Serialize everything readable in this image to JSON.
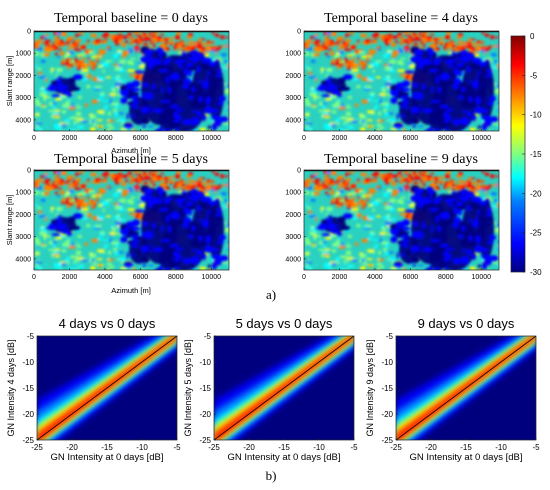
{
  "figure": {
    "part_a_label": "a)",
    "part_b_label": "b)"
  },
  "colors": {
    "colormap": [
      "#00007f",
      "#0000ff",
      "#0080ff",
      "#00ffff",
      "#80ff80",
      "#ffff00",
      "#ff8000",
      "#ff0000",
      "#800000"
    ],
    "regression_line": "#000000"
  },
  "chart_data": [
    {
      "type": "heatmap",
      "title": "Temporal baseline = 0 days",
      "xlabel": "Azimuth [m]",
      "ylabel": "Slant range [m]",
      "xlim": [
        0,
        11000
      ],
      "ylim": [
        0,
        4500
      ],
      "xticks": [
        "0",
        "2000",
        "4000",
        "6000",
        "8000",
        "10000"
      ],
      "yticks": [
        "0",
        "1000",
        "2000",
        "3000",
        "4000"
      ]
    },
    {
      "type": "heatmap",
      "title": "Temporal baseline = 4 days",
      "xlabel": "",
      "ylabel": "",
      "xlim": [
        0,
        11000
      ],
      "ylim": [
        0,
        4500
      ],
      "xticks": [
        "0",
        "2000",
        "4000",
        "6000",
        "8000",
        "10000"
      ],
      "yticks": [
        "0",
        "1000",
        "2000",
        "3000",
        "4000"
      ]
    },
    {
      "type": "heatmap",
      "title": "Temporal baseline = 5 days",
      "xlabel": "Azimuth [m]",
      "ylabel": "Slant range [m]",
      "xlim": [
        0,
        11000
      ],
      "ylim": [
        0,
        4500
      ],
      "xticks": [
        "0",
        "2000",
        "4000",
        "6000",
        "8000",
        "10000"
      ],
      "yticks": [
        "0",
        "1000",
        "2000",
        "3000",
        "4000"
      ]
    },
    {
      "type": "heatmap",
      "title": "Temporal baseline = 9 days",
      "xlabel": "",
      "ylabel": "",
      "xlim": [
        0,
        11000
      ],
      "ylim": [
        0,
        4500
      ],
      "xticks": [
        "0",
        "2000",
        "4000",
        "6000",
        "8000",
        "10000"
      ],
      "yticks": [
        "0",
        "1000",
        "2000",
        "3000",
        "4000"
      ]
    },
    {
      "type": "heatmap",
      "title": "",
      "colorbar": true,
      "clim": [
        -30,
        0
      ],
      "ticks": [
        "0",
        "-5",
        "-10",
        "-15",
        "-20",
        "-25",
        "-30"
      ]
    },
    {
      "type": "heatmap",
      "title": "4 days vs 0 days",
      "xlabel": "GN Intensity at 0 days [dB]",
      "ylabel": "GN Intensity 4 days [dB]",
      "xlim": [
        -25,
        -5
      ],
      "ylim": [
        -25,
        -5
      ],
      "xticks": [
        "-25",
        "-20",
        "-15",
        "-10",
        "-5"
      ],
      "yticks": [
        "-5",
        "-10",
        "-15",
        "-20",
        "-25"
      ]
    },
    {
      "type": "heatmap",
      "title": "5 days vs 0 days",
      "xlabel": "GN Intensity at 0 days [dB]",
      "ylabel": "GN Intensity 5 days [dB]",
      "xlim": [
        -25,
        -5
      ],
      "ylim": [
        -25,
        -5
      ],
      "xticks": [
        "-25",
        "-20",
        "-15",
        "-10",
        "-5"
      ],
      "yticks": [
        "-5",
        "-10",
        "-15",
        "-20",
        "-25"
      ]
    },
    {
      "type": "heatmap",
      "title": "9 days vs 0 days",
      "xlabel": "GN Intensity at 0 days [dB]",
      "ylabel": "GN Intensity 9 days [dB]",
      "xlim": [
        -25,
        -5
      ],
      "ylim": [
        -25,
        -5
      ],
      "xticks": [
        "-25",
        "-20",
        "-15",
        "-10",
        "-5"
      ],
      "yticks": [
        "-5",
        "-10",
        "-15",
        "-20",
        "-25"
      ]
    }
  ]
}
